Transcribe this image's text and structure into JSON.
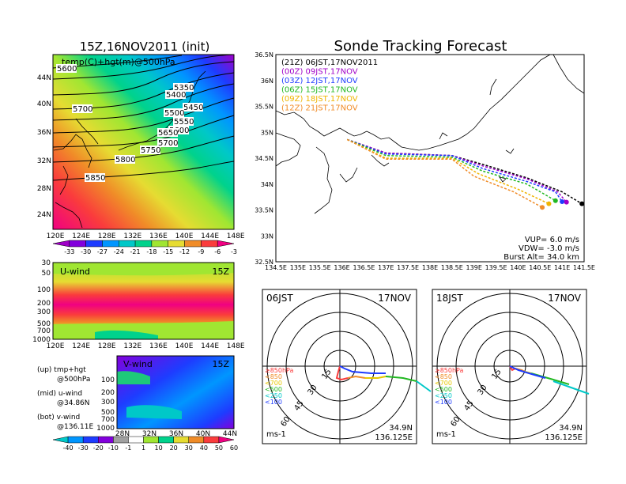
{
  "titles": {
    "init": "15Z,16NOV2011 (init)",
    "main": "Sonde Tracking Forecast"
  },
  "map500": {
    "label": "temp(C)+hgt(m)@500hPa",
    "lat_labels": [
      "44N",
      "40N",
      "36N",
      "32N",
      "28N",
      "24N"
    ],
    "lon_labels": [
      "120E",
      "124E",
      "128E",
      "132E",
      "136E",
      "140E",
      "144E",
      "148E"
    ],
    "contour_labels": [
      "5600",
      "5700",
      "5350",
      "5400",
      "5450",
      "5500",
      "5550",
      "5600",
      "5650",
      "5700",
      "5750",
      "5800",
      "5850"
    ]
  },
  "colorbar_temp": {
    "labels": [
      "-33",
      "-30",
      "-27",
      "-24",
      "-21",
      "-18",
      "-15",
      "-12",
      "-9",
      "-6",
      "-3"
    ],
    "colors": [
      "#a000c8",
      "#8200dc",
      "#1e3cff",
      "#0096ff",
      "#00c8c8",
      "#00d28c",
      "#a0e632",
      "#e6dc32",
      "#f08c28",
      "#fa3c3c",
      "#f00082"
    ]
  },
  "uwind": {
    "label": "U-wind",
    "time": "15Z",
    "p_labels": [
      "30",
      "50",
      "100",
      "200",
      "300",
      "500",
      "700",
      "1000"
    ],
    "lon_labels": [
      "120E",
      "124E",
      "128E",
      "132E",
      "136E",
      "140E",
      "144E",
      "148E"
    ]
  },
  "vwind": {
    "label": "V-wind",
    "time": "15Z",
    "p_labels": [
      "100",
      "200",
      "300",
      "500",
      "700",
      "1000"
    ],
    "lat_labels": [
      "28N",
      "32N",
      "36N",
      "40N",
      "44N"
    ]
  },
  "legend_notes": {
    "up": "(up) tmp+hgt",
    "up2": "@500hPa",
    "mid": "(mid) u-wind",
    "mid2": "@34.86N",
    "bot": "(bot) v-wind",
    "bot2": "@136.11E"
  },
  "colorbar_wind": {
    "labels": [
      "-40",
      "-30",
      "-20",
      "-10",
      "-1",
      "1",
      "10",
      "20",
      "30",
      "40",
      "50",
      "60"
    ],
    "colors": [
      "#00c8c8",
      "#0096ff",
      "#1e3cff",
      "#8200dc",
      "#a0a0a0",
      "#ffffff",
      "#a0e632",
      "#00d28c",
      "#e6dc32",
      "#f08c28",
      "#fa3c3c",
      "#f00082"
    ]
  },
  "track": {
    "runs": [
      {
        "label": "(21Z)  06JST,17NOV2011",
        "color": "#000000"
      },
      {
        "label": "(00Z)  09JST,17NOV",
        "color": "#a000c8"
      },
      {
        "label": "(03Z)  12JST,17NOV",
        "color": "#1e3cff"
      },
      {
        "label": "(06Z)  15JST,17NOV",
        "color": "#22b822"
      },
      {
        "label": "(09Z)  18JST,17NOV",
        "color": "#f0b400"
      },
      {
        "label": "(12Z)  21JST,17NOV",
        "color": "#f08c28"
      }
    ],
    "lat_labels": [
      "36.5N",
      "36N",
      "35.5N",
      "35N",
      "34.5N",
      "34N",
      "33.5N",
      "33N",
      "32.5N"
    ],
    "lon_labels": [
      "134.5E",
      "135E",
      "135.5E",
      "136E",
      "136.5E",
      "137E",
      "137.5E",
      "138E",
      "138.5E",
      "139E",
      "139.5E",
      "140E",
      "140.5E",
      "141E",
      "141.5E"
    ],
    "params": [
      "VUP=  6.0  m/s",
      "VDW= -3.0  m/s",
      "Burst Alt=  34.0  km"
    ]
  },
  "chart_data": {
    "type": "line",
    "title": "Sonde Tracking Forecast",
    "xlim": [
      134.5,
      141.5
    ],
    "ylim": [
      32.5,
      36.5
    ],
    "series": [
      {
        "name": "(21Z)  06JST,17NOV2011",
        "x": [
          136.12,
          137.0,
          138.5,
          139.2,
          140.2,
          141.0,
          141.45
        ],
        "y": [
          34.86,
          34.6,
          34.55,
          34.38,
          34.12,
          33.85,
          33.62
        ]
      },
      {
        "name": "(00Z)  09JST,17NOV",
        "x": [
          136.12,
          137.0,
          138.5,
          139.2,
          140.2,
          140.9,
          141.1
        ],
        "y": [
          34.86,
          34.6,
          34.55,
          34.35,
          34.1,
          33.85,
          33.65
        ]
      },
      {
        "name": "(03Z)  12JST,17NOV",
        "x": [
          136.12,
          137.0,
          138.5,
          139.2,
          140.2,
          140.85,
          141.0
        ],
        "y": [
          34.86,
          34.58,
          34.55,
          34.3,
          34.05,
          33.85,
          33.66
        ]
      },
      {
        "name": "(06Z)  15JST,17NOV",
        "x": [
          136.12,
          137.0,
          138.5,
          139.2,
          140.2,
          140.85
        ],
        "y": [
          34.86,
          34.55,
          34.52,
          34.25,
          34.0,
          33.68
        ]
      },
      {
        "name": "(09Z)  18JST,17NOV",
        "x": [
          136.12,
          137.0,
          138.5,
          139.1,
          140.0,
          140.7
        ],
        "y": [
          34.86,
          34.5,
          34.5,
          34.2,
          33.9,
          33.62
        ]
      },
      {
        "name": "(12Z)  21JST,17NOV",
        "x": [
          136.12,
          137.0,
          138.5,
          139.0,
          139.9,
          140.55
        ],
        "y": [
          34.86,
          34.48,
          34.48,
          34.15,
          33.85,
          33.55
        ]
      }
    ]
  },
  "hodo_am": {
    "label": "06JST",
    "date": "17NOV",
    "ring_labels": [
      "15",
      "30",
      "45",
      "60"
    ],
    "levels": [
      "≥850hPa",
      "<850",
      "<700",
      "<500",
      "<250",
      "<100"
    ],
    "level_colors": [
      "#fa3c3c",
      "#f08c28",
      "#e6c800",
      "#22b822",
      "#00c8c8",
      "#1e3cff"
    ],
    "unit": "ms-1",
    "lat": "34.9N",
    "lon": "136.125E"
  },
  "hodo_pm": {
    "label": "18JST",
    "date": "17NOV",
    "ring_labels": [
      "15",
      "30",
      "45",
      "60"
    ],
    "levels": [
      "≥850hPa",
      "<850",
      "<700",
      "<500",
      "<250",
      "<100"
    ],
    "level_colors": [
      "#fa3c3c",
      "#f08c28",
      "#e6c800",
      "#22b822",
      "#00c8c8",
      "#1e3cff"
    ],
    "unit": "ms-1",
    "lat": "34.9N",
    "lon": "136.125E"
  }
}
